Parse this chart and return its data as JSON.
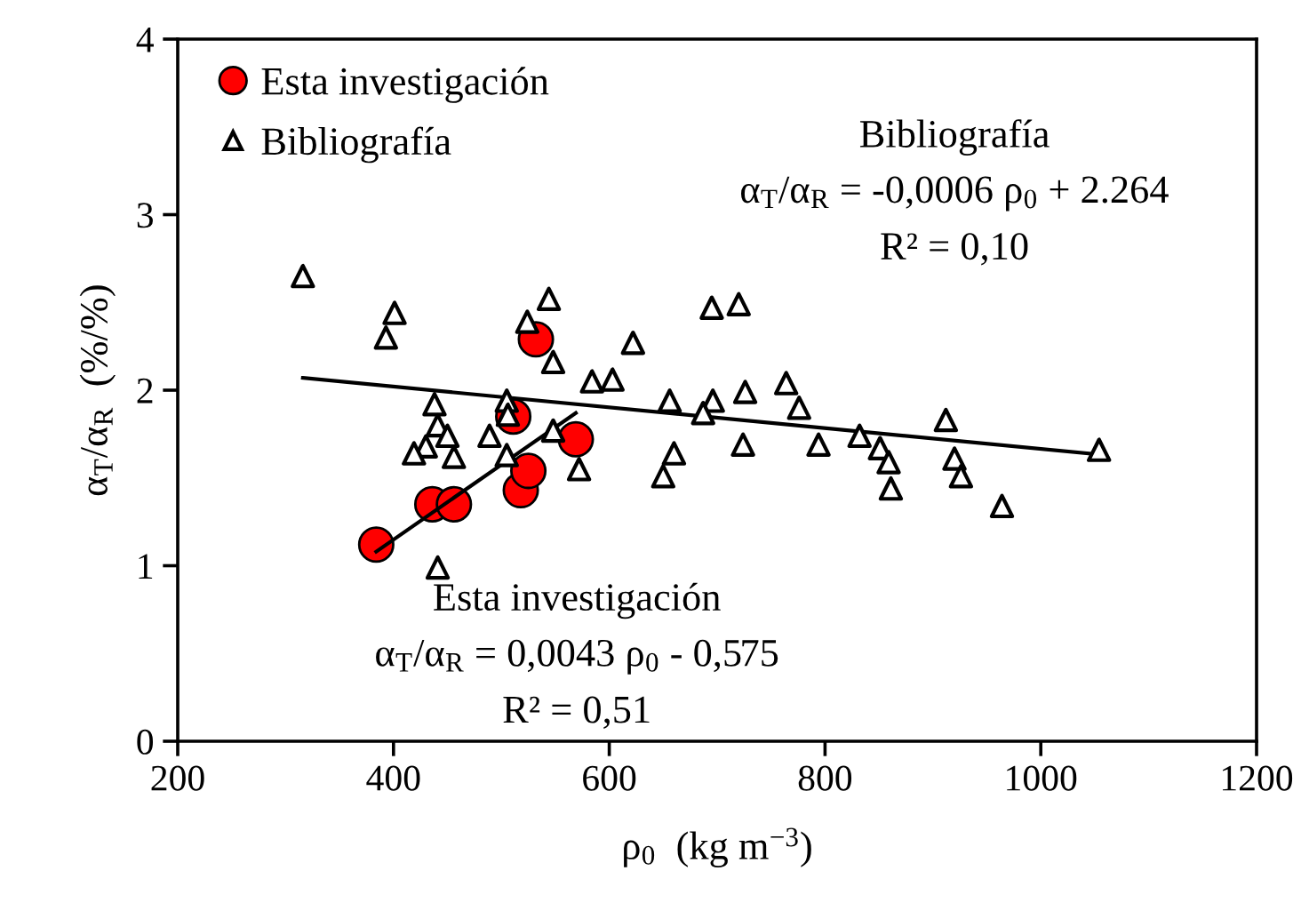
{
  "chart_data": {
    "type": "scatter",
    "xlabel": "ρ$_{0}$  (kg m$^{−3}$)",
    "ylabel": "α$_{T}$/α$_{R}$  (%/%)",
    "xlim": [
      200,
      1200
    ],
    "xticks": [
      200,
      400,
      600,
      800,
      1000,
      1200
    ],
    "ylim": [
      0,
      4
    ],
    "yticks": [
      0,
      1,
      2,
      3,
      4
    ],
    "grid": false,
    "legend": "top left",
    "series": [
      {
        "name": "Esta investigación",
        "marker": "circle",
        "color": "#ff0000",
        "x": [
          384,
          436,
          456,
          518,
          525,
          569,
          511,
          532
        ],
        "values": [
          1.12,
          1.35,
          1.35,
          1.43,
          1.54,
          1.72,
          1.85,
          2.29
        ]
      },
      {
        "name": "Bibliografía",
        "marker": "triangle",
        "color": "#000000",
        "x": [
          316,
          401,
          393,
          544,
          524,
          548,
          622,
          584,
          603,
          438,
          505,
          506,
          441,
          450,
          489,
          430,
          419,
          456,
          505,
          548,
          572,
          441,
          656,
          660,
          650,
          695,
          720,
          696,
          687,
          726,
          724,
          764,
          776,
          794,
          832,
          851,
          859,
          861,
          912,
          920,
          926,
          964,
          1054
        ],
        "values": [
          2.65,
          2.44,
          2.3,
          2.52,
          2.39,
          2.16,
          2.27,
          2.05,
          2.06,
          1.92,
          1.94,
          1.86,
          1.8,
          1.74,
          1.74,
          1.68,
          1.64,
          1.62,
          1.63,
          1.77,
          1.55,
          0.99,
          1.94,
          1.64,
          1.51,
          2.47,
          2.49,
          1.94,
          1.87,
          1.99,
          1.69,
          2.04,
          1.9,
          1.69,
          1.74,
          1.67,
          1.59,
          1.44,
          1.83,
          1.61,
          1.51,
          1.34,
          1.66
        ]
      },
      {
        "type": "line",
        "color": "#000000",
        "line_style": "solid",
        "marker": "none",
        "x": [
          384,
          569
        ],
        "values": [
          1.08,
          1.87
        ]
      },
      {
        "type": "line",
        "color": "#000000",
        "line_style": "solid",
        "marker": "none",
        "x": [
          316,
          1060
        ],
        "values": [
          2.07,
          1.63
        ]
      }
    ],
    "annotations": [
      "Bibliografía",
      "α$_{T}$/α$_{R}$ = -0,0006 ρ$_{0}$ + 2.264",
      "R² = 0,10",
      "Esta investigación",
      "α$_{T}$/α$_{R}$ = 0,0043 ρ$_{0}$ - 0,575",
      "R² = 0,51"
    ]
  }
}
